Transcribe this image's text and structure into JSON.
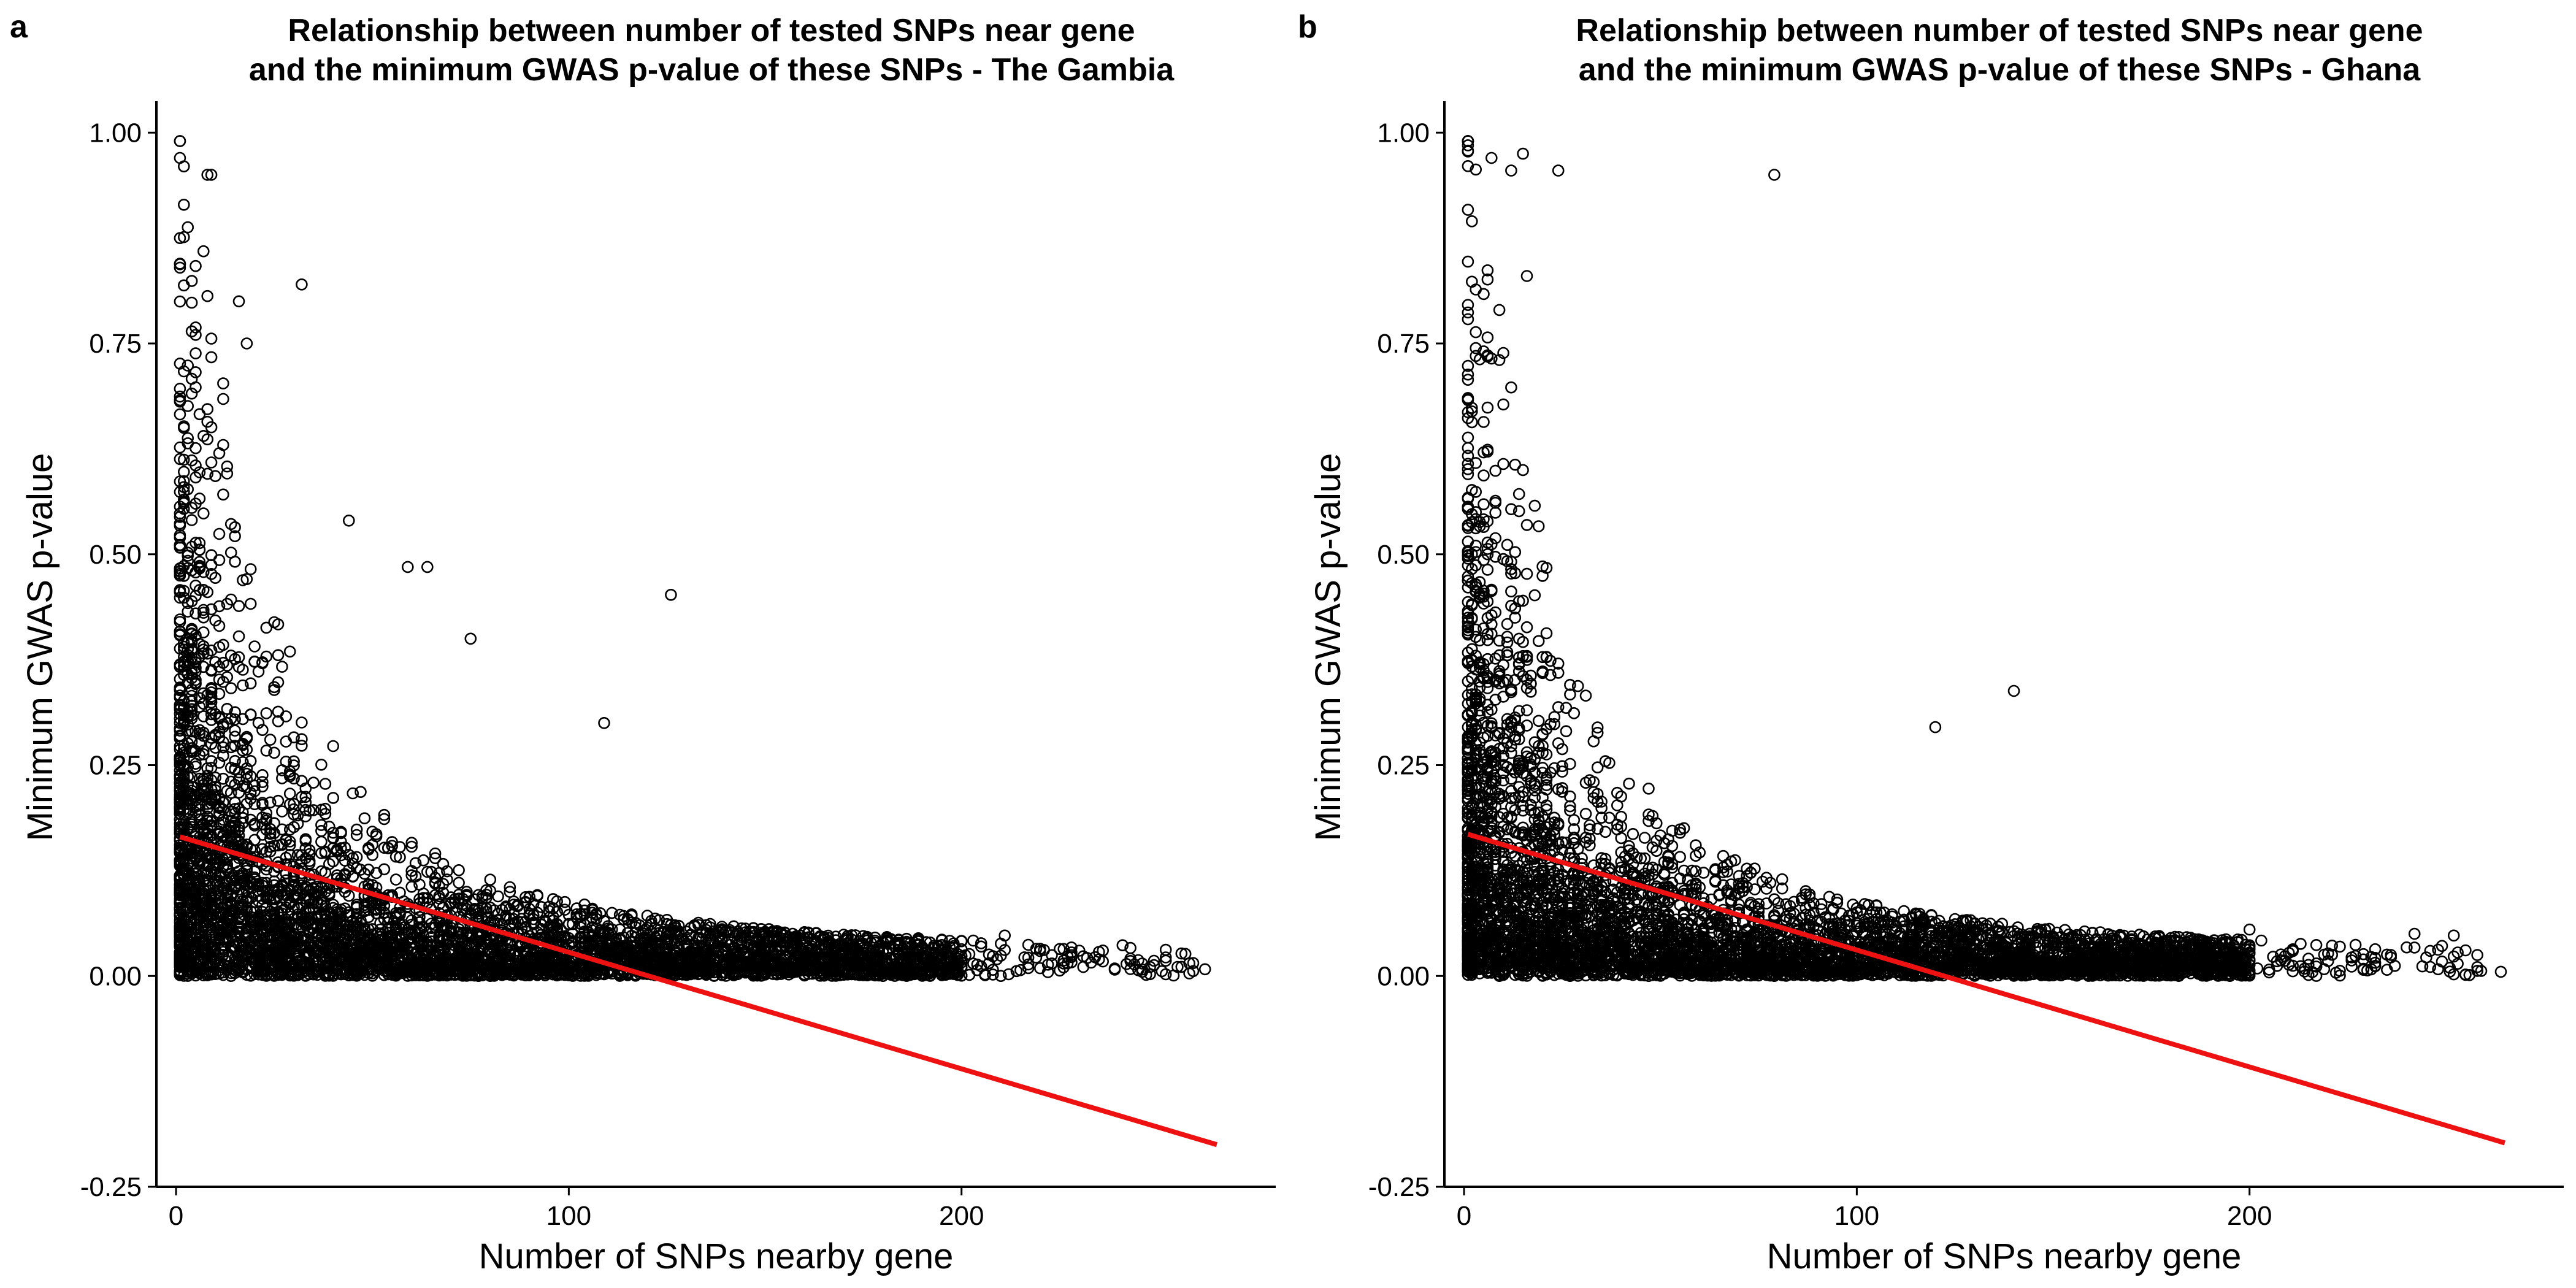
{
  "chart_data": [
    {
      "type": "scatter",
      "panel": "a",
      "title_line1": "Relationship between number of tested SNPs near gene",
      "title_line2": "and the minimum GWAS p-value of these SNPs - The Gambia",
      "xlabel": "Number of SNPs nearby gene",
      "ylabel": "Minimum GWAS p-value",
      "xlim": [
        -5,
        280
      ],
      "ylim": [
        -0.25,
        1.03
      ],
      "x_ticks": [
        0,
        100,
        200
      ],
      "x_tick_labels": [
        "0",
        "100",
        "200"
      ],
      "y_ticks": [
        -0.25,
        0,
        0.25,
        0.5,
        0.75,
        1.0
      ],
      "y_tick_labels": [
        "-0.25",
        "0.00",
        "0.25",
        "0.50",
        "0.75",
        "1.00"
      ],
      "point_style": "open-circle",
      "point_color": "#000000",
      "fit_line": {
        "x": [
          1,
          265
        ],
        "y": [
          0.165,
          -0.2
        ],
        "color": "#ee1111"
      },
      "points_seed": 1337,
      "points_count": 5200,
      "notable_points": [
        {
          "x": 1,
          "y": 0.97
        },
        {
          "x": 2,
          "y": 0.96
        },
        {
          "x": 9,
          "y": 0.95
        },
        {
          "x": 8,
          "y": 0.95
        },
        {
          "x": 32,
          "y": 0.82
        },
        {
          "x": 16,
          "y": 0.8
        },
        {
          "x": 18,
          "y": 0.75
        },
        {
          "x": 44,
          "y": 0.54
        },
        {
          "x": 59,
          "y": 0.485
        },
        {
          "x": 64,
          "y": 0.485
        },
        {
          "x": 126,
          "y": 0.452
        },
        {
          "x": 75,
          "y": 0.4
        },
        {
          "x": 109,
          "y": 0.3
        },
        {
          "x": 246,
          "y": 0.005
        },
        {
          "x": 252,
          "y": 0.002
        },
        {
          "x": 262,
          "y": 0.008
        },
        {
          "x": 258,
          "y": 0.003
        },
        {
          "x": 230,
          "y": 0.03
        },
        {
          "x": 225,
          "y": 0.032
        },
        {
          "x": 211,
          "y": 0.048
        }
      ]
    },
    {
      "type": "scatter",
      "panel": "b",
      "title_line1": "Relationship between number of tested SNPs near gene",
      "title_line2": "and the minimum GWAS p-value of these SNPs - Ghana",
      "xlabel": "Number of SNPs nearby gene",
      "ylabel": "Minimum GWAS p-value",
      "xlim": [
        -5,
        280
      ],
      "ylim": [
        -0.25,
        1.03
      ],
      "x_ticks": [
        0,
        100,
        200
      ],
      "x_tick_labels": [
        "0",
        "100",
        "200"
      ],
      "y_ticks": [
        -0.25,
        0,
        0.25,
        0.5,
        0.75,
        1.0
      ],
      "y_tick_labels": [
        "-0.25",
        "0.00",
        "0.25",
        "0.50",
        "0.75",
        "1.00"
      ],
      "point_style": "open-circle",
      "point_color": "#000000",
      "fit_line": {
        "x": [
          1,
          265
        ],
        "y": [
          0.168,
          -0.198
        ],
        "color": "#ee1111"
      },
      "points_seed": 4242,
      "points_count": 5400,
      "notable_points": [
        {
          "x": 1,
          "y": 0.985
        },
        {
          "x": 15,
          "y": 0.975
        },
        {
          "x": 7,
          "y": 0.97
        },
        {
          "x": 12,
          "y": 0.955
        },
        {
          "x": 24,
          "y": 0.955
        },
        {
          "x": 79,
          "y": 0.95
        },
        {
          "x": 16,
          "y": 0.83
        },
        {
          "x": 140,
          "y": 0.338
        },
        {
          "x": 120,
          "y": 0.295
        },
        {
          "x": 242,
          "y": 0.05
        },
        {
          "x": 252,
          "y": 0.048
        },
        {
          "x": 264,
          "y": 0.005
        },
        {
          "x": 259,
          "y": 0.006
        },
        {
          "x": 248,
          "y": 0.008
        },
        {
          "x": 226,
          "y": 0.022
        },
        {
          "x": 232,
          "y": 0.012
        },
        {
          "x": 200,
          "y": 0.055
        }
      ]
    }
  ]
}
